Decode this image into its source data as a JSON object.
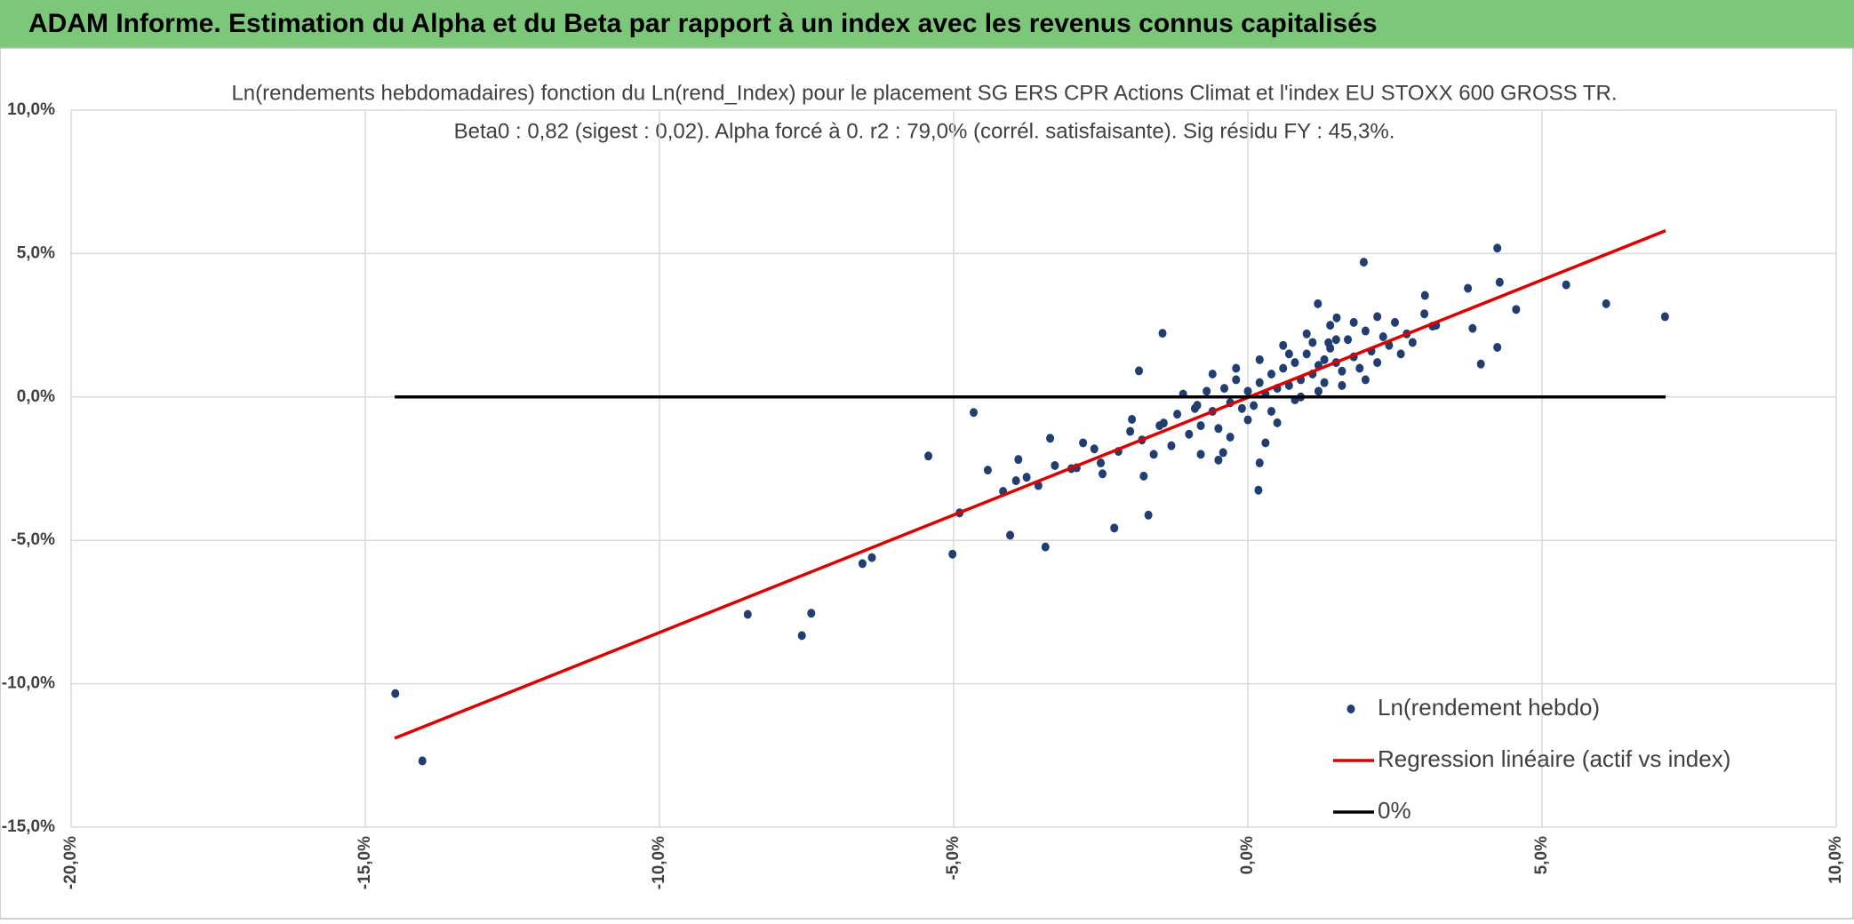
{
  "header": {
    "title": "ADAM Informe. Estimation du Alpha et du Beta par rapport à un index avec les revenus connus capitalisés"
  },
  "chart_data": {
    "type": "scatter",
    "title": "Ln(rendements hebdomadaires) fonction du Ln(rend_Index) pour le placement SG ERS CPR Actions Climat et l'index EU STOXX 600 GROSS TR.",
    "subtitle": "Beta0 : 0,82 (sigest : 0,02). Alpha forcé à 0. r2 : 79,0% (corrél. satisfaisante). Sig résidu FY : 45,3%.",
    "xlim": [
      -20,
      10
    ],
    "ylim": [
      -15,
      10
    ],
    "xticks": [
      {
        "value": -20,
        "label": "-20,0%"
      },
      {
        "value": -15,
        "label": "-15,0%"
      },
      {
        "value": -10,
        "label": "-10,0%"
      },
      {
        "value": -5,
        "label": "-5,0%"
      },
      {
        "value": 0,
        "label": "0,0%"
      },
      {
        "value": 5,
        "label": "5,0%"
      },
      {
        "value": 10,
        "label": "10,0%"
      }
    ],
    "yticks": [
      {
        "value": -15,
        "label": "-15,0%"
      },
      {
        "value": -10,
        "label": "-10,0%"
      },
      {
        "value": -5,
        "label": "-5,0%"
      },
      {
        "value": 0,
        "label": "0,0%"
      },
      {
        "value": 5,
        "label": "5,0%"
      },
      {
        "value": 10,
        "label": "10,0%"
      }
    ],
    "grid": true,
    "legend_position": "bottom-right",
    "series": [
      {
        "name": "Ln(rendement hebdo)",
        "mode": "markers",
        "color": "#203f70",
        "x": [
          -14.49,
          -14.03,
          -8.5,
          -7.58,
          -7.42,
          -6.55,
          -6.39,
          -5.43,
          -5.02,
          -4.9,
          -4.66,
          -4.42,
          -4.04,
          -3.44,
          -2.27,
          -1.69,
          0.18,
          1.97,
          4.24,
          5.41,
          6.09,
          7.09,
          4.28,
          3.96,
          4.24,
          4.56,
          3.74,
          3.82,
          3.14,
          3.01,
          -1.45,
          -1.85,
          -0.86,
          0.2,
          -0.42,
          -3.9,
          -3.36,
          -4.16,
          -3.94,
          -3.76,
          -3.56,
          -3.28,
          -2.91,
          -2.61,
          -2.47,
          -1.97,
          -1.43,
          -1.77,
          1.19,
          1.51,
          1.37,
          -1.8,
          -1.5,
          -1.2,
          -1.0,
          -0.9,
          -0.8,
          -0.7,
          -0.6,
          -0.5,
          -0.4,
          -0.3,
          -0.2,
          -0.1,
          0.0,
          0.1,
          0.2,
          0.3,
          0.4,
          0.5,
          0.6,
          0.7,
          0.8,
          0.9,
          1.0,
          1.1,
          1.2,
          1.3,
          1.4,
          1.5,
          1.6,
          1.7,
          1.8,
          1.9,
          2.0,
          2.1,
          2.2,
          2.3,
          2.4,
          2.5,
          2.6,
          2.7,
          2.8,
          3.0,
          3.2,
          -2.2,
          -2.5,
          -2.8,
          -3.0,
          -2.0,
          -1.6,
          -1.3,
          -1.1,
          -0.8,
          -0.6,
          -0.3,
          0.0,
          0.2,
          0.4,
          0.6,
          0.8,
          1.0,
          1.2,
          1.4,
          1.6,
          1.8,
          2.0,
          2.2,
          0.3,
          -0.5,
          0.5,
          1.1,
          0.7,
          0.9,
          -0.2,
          1.3,
          1.5
        ],
        "values": [
          -10.34,
          -12.69,
          -7.58,
          -8.32,
          -7.54,
          -5.81,
          -5.6,
          -2.06,
          -5.48,
          -4.04,
          -0.54,
          -2.55,
          -4.82,
          -5.23,
          -4.57,
          -4.12,
          -3.25,
          4.7,
          5.19,
          3.91,
          3.25,
          2.8,
          4.0,
          1.15,
          1.73,
          3.05,
          3.79,
          2.39,
          2.47,
          3.54,
          2.22,
          0.91,
          -0.29,
          -2.3,
          -1.94,
          -2.18,
          -1.44,
          -3.29,
          -2.92,
          -2.8,
          -3.09,
          -2.39,
          -2.47,
          -1.81,
          -2.68,
          -0.78,
          -0.91,
          -2.76,
          3.25,
          2.76,
          1.89,
          -1.5,
          -1.0,
          -0.6,
          -1.3,
          -0.4,
          -1.0,
          0.2,
          -0.5,
          -1.1,
          0.3,
          -0.2,
          0.6,
          -0.4,
          0.2,
          -0.3,
          0.5,
          0.1,
          0.8,
          0.3,
          1.0,
          0.4,
          1.2,
          0.6,
          1.5,
          0.8,
          1.1,
          0.5,
          1.7,
          1.2,
          0.9,
          2.0,
          1.4,
          1.0,
          2.3,
          1.6,
          1.2,
          2.1,
          1.8,
          2.6,
          1.5,
          2.2,
          1.9,
          2.9,
          2.5,
          -1.9,
          -2.3,
          -1.6,
          -2.5,
          -1.2,
          -2.0,
          -1.7,
          0.1,
          -2.0,
          0.8,
          -1.4,
          -0.8,
          1.3,
          -0.5,
          1.8,
          -0.1,
          2.2,
          0.2,
          2.5,
          0.4,
          2.6,
          0.6,
          2.8,
          -1.6,
          -2.2,
          -0.9,
          1.9,
          1.5,
          0.0,
          1.0,
          1.3,
          2.0
        ]
      },
      {
        "name": "Regression linéaire (actif vs index)",
        "mode": "line",
        "color": "#e00000",
        "x": [
          -14.5,
          7.1
        ],
        "values": [
          -11.9,
          5.8
        ]
      },
      {
        "name": "0%",
        "mode": "line",
        "color": "#000000",
        "x": [
          -14.5,
          7.1
        ],
        "values": [
          0,
          0
        ]
      }
    ]
  }
}
